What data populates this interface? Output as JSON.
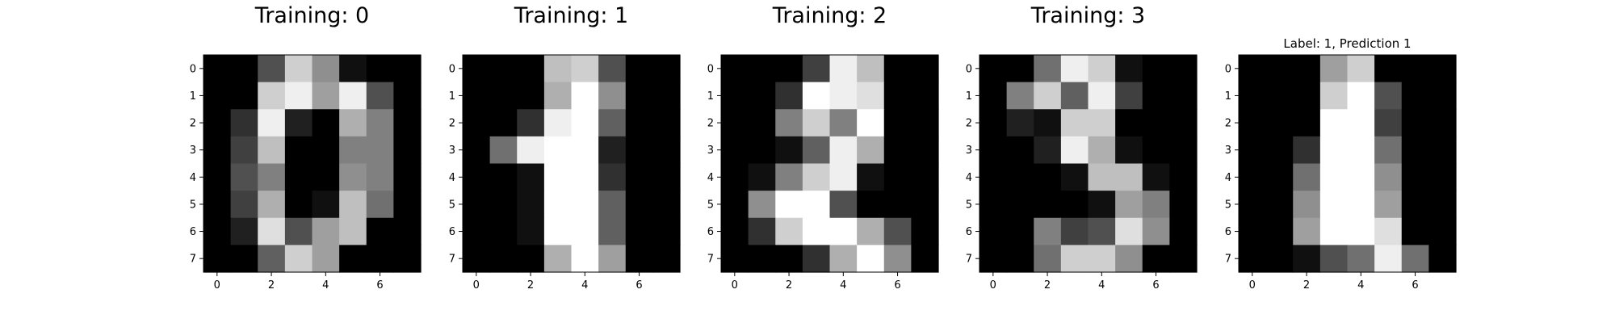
{
  "chart_data": [
    {
      "type": "heatmap",
      "title": "Training: 0",
      "colormap": "gray",
      "value_range": [
        0,
        16
      ],
      "x_ticks": [
        "0",
        "2",
        "4",
        "6"
      ],
      "y_ticks": [
        "0",
        "1",
        "2",
        "3",
        "4",
        "5",
        "6",
        "7"
      ],
      "values": [
        [
          0,
          0,
          5,
          13,
          9,
          1,
          0,
          0
        ],
        [
          0,
          0,
          13,
          15,
          10,
          15,
          5,
          0
        ],
        [
          0,
          3,
          15,
          2,
          0,
          11,
          8,
          0
        ],
        [
          0,
          4,
          12,
          0,
          0,
          8,
          8,
          0
        ],
        [
          0,
          5,
          8,
          0,
          0,
          9,
          8,
          0
        ],
        [
          0,
          4,
          11,
          0,
          1,
          12,
          7,
          0
        ],
        [
          0,
          2,
          14,
          5,
          10,
          12,
          0,
          0
        ],
        [
          0,
          0,
          6,
          13,
          10,
          0,
          0,
          0
        ]
      ]
    },
    {
      "type": "heatmap",
      "title": "Training: 1",
      "colormap": "gray",
      "value_range": [
        0,
        16
      ],
      "x_ticks": [
        "0",
        "2",
        "4",
        "6"
      ],
      "y_ticks": [
        "0",
        "1",
        "2",
        "3",
        "4",
        "5",
        "6",
        "7"
      ],
      "values": [
        [
          0,
          0,
          0,
          12,
          13,
          5,
          0,
          0
        ],
        [
          0,
          0,
          0,
          11,
          16,
          9,
          0,
          0
        ],
        [
          0,
          0,
          3,
          15,
          16,
          6,
          0,
          0
        ],
        [
          0,
          7,
          15,
          16,
          16,
          2,
          0,
          0
        ],
        [
          0,
          0,
          1,
          16,
          16,
          3,
          0,
          0
        ],
        [
          0,
          0,
          1,
          16,
          16,
          6,
          0,
          0
        ],
        [
          0,
          0,
          1,
          16,
          16,
          6,
          0,
          0
        ],
        [
          0,
          0,
          0,
          11,
          16,
          10,
          0,
          0
        ]
      ]
    },
    {
      "type": "heatmap",
      "title": "Training: 2",
      "colormap": "gray",
      "value_range": [
        0,
        16
      ],
      "x_ticks": [
        "0",
        "2",
        "4",
        "6"
      ],
      "y_ticks": [
        "0",
        "1",
        "2",
        "3",
        "4",
        "5",
        "6",
        "7"
      ],
      "values": [
        [
          0,
          0,
          0,
          4,
          15,
          12,
          0,
          0
        ],
        [
          0,
          0,
          3,
          16,
          15,
          14,
          0,
          0
        ],
        [
          0,
          0,
          8,
          13,
          8,
          16,
          0,
          0
        ],
        [
          0,
          0,
          1,
          6,
          15,
          11,
          0,
          0
        ],
        [
          0,
          1,
          8,
          13,
          15,
          1,
          0,
          0
        ],
        [
          0,
          9,
          16,
          16,
          5,
          0,
          0,
          0
        ],
        [
          0,
          3,
          13,
          16,
          16,
          11,
          5,
          0
        ],
        [
          0,
          0,
          0,
          3,
          11,
          16,
          9,
          0
        ]
      ]
    },
    {
      "type": "heatmap",
      "title": "Training: 3",
      "colormap": "gray",
      "value_range": [
        0,
        16
      ],
      "x_ticks": [
        "0",
        "2",
        "4",
        "6"
      ],
      "y_ticks": [
        "0",
        "1",
        "2",
        "3",
        "4",
        "5",
        "6",
        "7"
      ],
      "values": [
        [
          0,
          0,
          7,
          15,
          13,
          1,
          0,
          0
        ],
        [
          0,
          8,
          13,
          6,
          15,
          4,
          0,
          0
        ],
        [
          0,
          2,
          1,
          13,
          13,
          0,
          0,
          0
        ],
        [
          0,
          0,
          2,
          15,
          11,
          1,
          0,
          0
        ],
        [
          0,
          0,
          0,
          1,
          12,
          12,
          1,
          0
        ],
        [
          0,
          0,
          0,
          0,
          1,
          10,
          8,
          0
        ],
        [
          0,
          0,
          8,
          4,
          5,
          14,
          9,
          0
        ],
        [
          0,
          0,
          7,
          13,
          13,
          9,
          0,
          0
        ]
      ]
    },
    {
      "type": "heatmap",
      "title": "Label: 1, Prediction 1",
      "colormap": "gray",
      "value_range": [
        0,
        16
      ],
      "x_ticks": [
        "0",
        "2",
        "4",
        "6"
      ],
      "y_ticks": [
        "0",
        "1",
        "2",
        "3",
        "4",
        "5",
        "6",
        "7"
      ],
      "values": [
        [
          0,
          0,
          0,
          10,
          13,
          0,
          0,
          0
        ],
        [
          0,
          0,
          0,
          13,
          16,
          5,
          0,
          0
        ],
        [
          0,
          0,
          0,
          16,
          16,
          4,
          0,
          0
        ],
        [
          0,
          0,
          3,
          16,
          16,
          7,
          0,
          0
        ],
        [
          0,
          0,
          7,
          16,
          16,
          9,
          0,
          0
        ],
        [
          0,
          0,
          9,
          16,
          16,
          10,
          0,
          0
        ],
        [
          0,
          0,
          10,
          16,
          16,
          14,
          0,
          0
        ],
        [
          0,
          0,
          1,
          5,
          7,
          15,
          7,
          0
        ]
      ]
    }
  ]
}
